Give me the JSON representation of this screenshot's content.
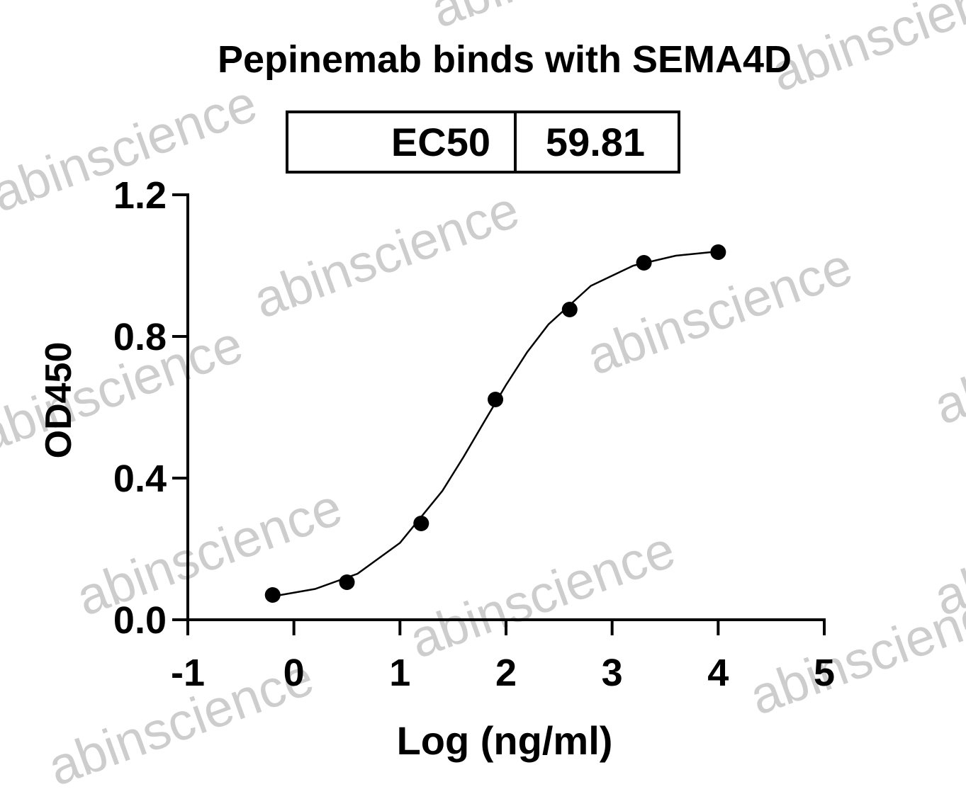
{
  "chart_data": {
    "type": "scatter",
    "title": "Pepinemab binds with SEMA4D",
    "watermark": "abinscience",
    "ec50_table": {
      "label": "EC50",
      "value": 59.81
    },
    "x_label": "Log (ng/ml)",
    "y_label": "OD450",
    "xlim": [
      -1,
      5
    ],
    "xticks": [
      -1,
      0,
      1,
      2,
      3,
      4,
      5
    ],
    "ylim": [
      0,
      1.2
    ],
    "yticks": [
      {
        "value": 0,
        "label": "0.0"
      },
      0.4,
      0.8,
      1.2
    ],
    "series": [
      {
        "type": "scatter",
        "color": "#000000",
        "x": [
          -0.2,
          0.5,
          1.2,
          1.9,
          2.6,
          3.3,
          4.0
        ],
        "values": [
          0.07,
          0.106,
          0.272,
          0.622,
          0.876,
          1.008,
          1.038
        ]
      },
      {
        "type": "line",
        "color": "#000000",
        "x": [
          -0.2,
          0.2,
          0.6,
          1.0,
          1.4,
          1.6,
          1.8,
          2.0,
          2.2,
          2.4,
          2.8,
          3.2,
          3.6,
          4.0
        ],
        "values": [
          0.066,
          0.087,
          0.13,
          0.217,
          0.364,
          0.46,
          0.562,
          0.663,
          0.756,
          0.834,
          0.943,
          1.0,
          1.028,
          1.04
        ]
      }
    ]
  }
}
